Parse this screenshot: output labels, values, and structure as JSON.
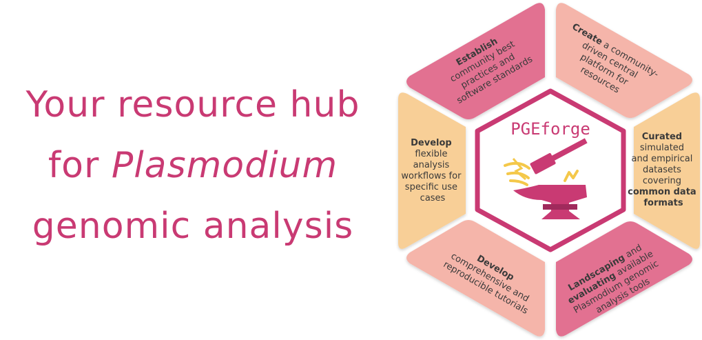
{
  "headline": {
    "line1": "Your resource hub",
    "line2_prefix": "for ",
    "line2_italic": "Plasmodium",
    "line3": "genomic analysis"
  },
  "center": {
    "logo_text": "PGEforge",
    "logo_icon": "anvil-hammer-icon"
  },
  "segments": {
    "top_left": {
      "lines": [
        [
          "Establish",
          ""
        ],
        [
          "",
          "community best"
        ],
        [
          "",
          "practices and"
        ],
        [
          "",
          "software standards"
        ]
      ]
    },
    "top_right": {
      "lines": [
        [
          "Create",
          " a community-"
        ],
        [
          "",
          "driven central"
        ],
        [
          "",
          "platform for"
        ],
        [
          "",
          "resources"
        ]
      ]
    },
    "right": {
      "lines": [
        [
          "Curated",
          ""
        ],
        [
          "",
          "simulated"
        ],
        [
          "",
          "and empirical"
        ],
        [
          "",
          "datasets"
        ],
        [
          "",
          "covering"
        ],
        [
          "common data",
          ""
        ],
        [
          "formats",
          ""
        ]
      ]
    },
    "bottom_right": {
      "lines": [
        [
          "Landscaping",
          " and"
        ],
        [
          "evaluating",
          " available"
        ],
        [
          "",
          "Plasmodium genomic"
        ],
        [
          "",
          "analysis tools"
        ]
      ]
    },
    "bottom_left": {
      "lines": [
        [
          "Develop",
          ""
        ],
        [
          "",
          "comprehensive and"
        ],
        [
          "",
          "reproducible tutorials"
        ]
      ]
    },
    "left": {
      "lines": [
        [
          "Develop",
          ""
        ],
        [
          "",
          "flexible"
        ],
        [
          "",
          "analysis"
        ],
        [
          "",
          "workflows for"
        ],
        [
          "",
          "specific use"
        ],
        [
          "",
          "cases"
        ]
      ]
    }
  },
  "colors": {
    "headline": "#c93a73",
    "top_left": "#e27191",
    "top_right": "#f5b5aa",
    "right": "#f8cf97",
    "bottom_right": "#e27191",
    "bottom_left": "#f5b5aa",
    "left": "#f8cf97",
    "hex_border": "#c93a73"
  }
}
